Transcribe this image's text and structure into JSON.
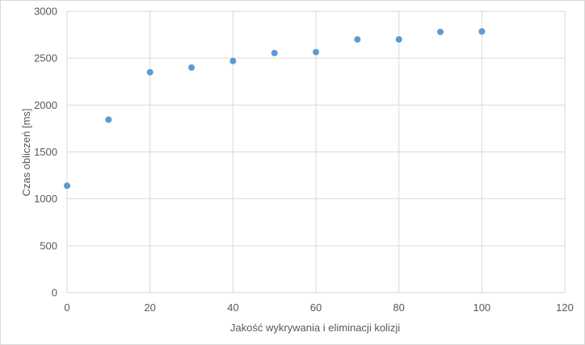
{
  "chart_data": {
    "type": "scatter",
    "title": "",
    "xlabel": "Jakość wykrywania i eliminacji kolizji",
    "ylabel": "Czas obliczeń [ms]",
    "xlim": [
      0,
      120
    ],
    "ylim": [
      0,
      3000
    ],
    "x_ticks": [
      0,
      20,
      40,
      60,
      80,
      100,
      120
    ],
    "y_ticks": [
      0,
      500,
      1000,
      1500,
      2000,
      2500,
      3000
    ],
    "grid": true,
    "legend": "none",
    "color": "#5b9bd5",
    "points": [
      {
        "x": 0,
        "y": 1140
      },
      {
        "x": 10,
        "y": 1845
      },
      {
        "x": 20,
        "y": 2350
      },
      {
        "x": 30,
        "y": 2400
      },
      {
        "x": 40,
        "y": 2470
      },
      {
        "x": 50,
        "y": 2555
      },
      {
        "x": 60,
        "y": 2565
      },
      {
        "x": 70,
        "y": 2700
      },
      {
        "x": 80,
        "y": 2700
      },
      {
        "x": 90,
        "y": 2780
      },
      {
        "x": 100,
        "y": 2785
      }
    ]
  }
}
